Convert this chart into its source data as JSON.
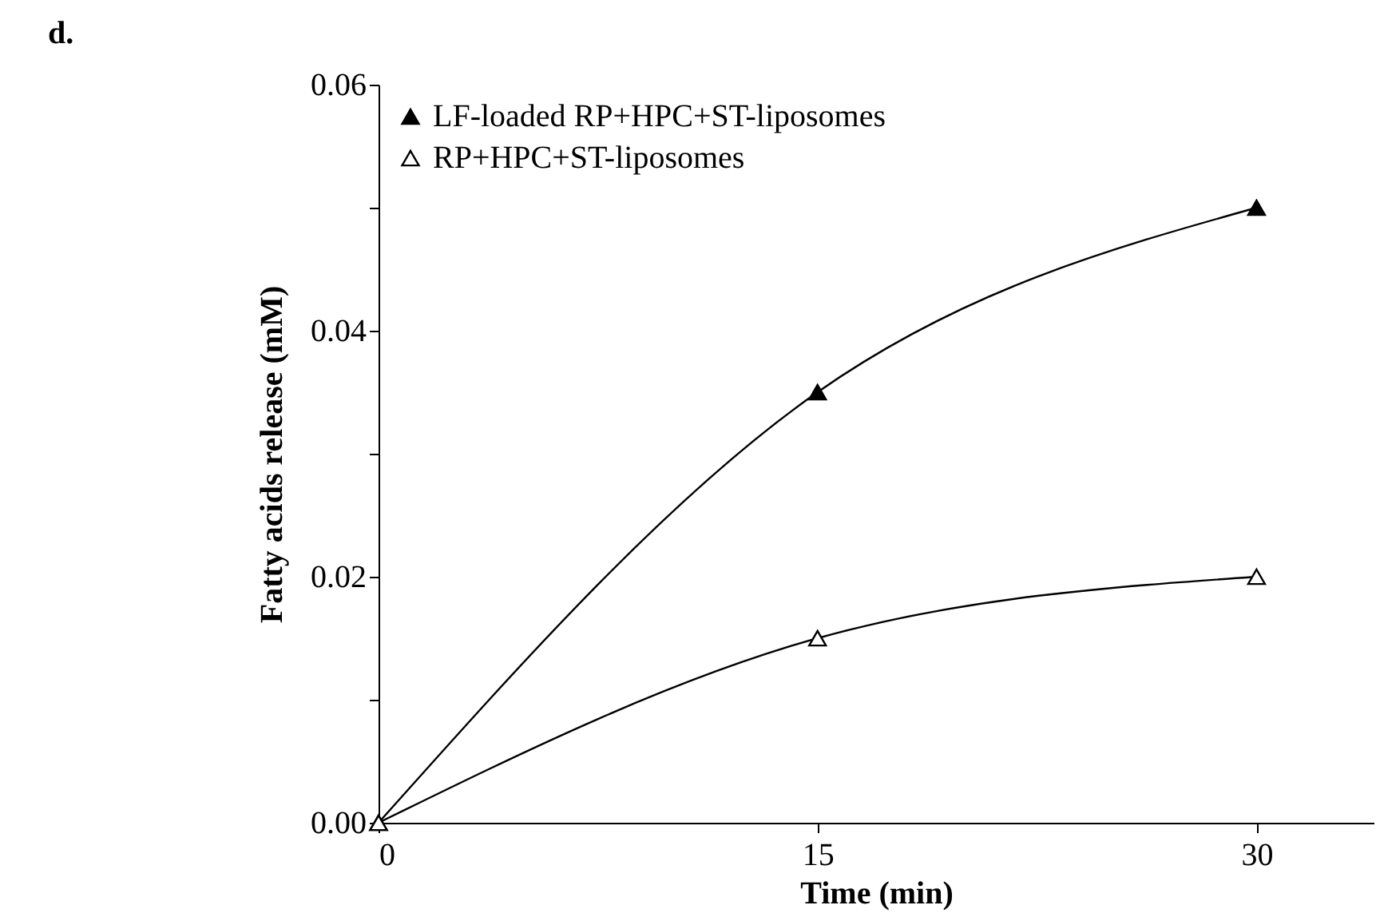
{
  "chart_data": {
    "type": "line",
    "xlabel": "Time (min)",
    "ylabel": "Fatty acids release (mM)",
    "annotations": [
      "d."
    ],
    "x": [
      0,
      15,
      30
    ],
    "xlim": [
      0,
      34
    ],
    "xticks": [
      0,
      15,
      30
    ],
    "ylim": [
      0,
      0.06
    ],
    "yticks": [
      {
        "value": 0,
        "label": "0.00"
      },
      {
        "value": 0.01,
        "label": null
      },
      {
        "value": 0.02,
        "label": "0.02"
      },
      {
        "value": 0.03,
        "label": null
      },
      {
        "value": 0.04,
        "label": "0.04"
      },
      {
        "value": 0.05,
        "label": null
      },
      {
        "value": 0.06,
        "label": "0.06"
      }
    ],
    "series": [
      {
        "name": "LF-loaded RP+HPC+ST-liposomes",
        "color": "#000000",
        "values": [
          0,
          0.035,
          0.05
        ]
      },
      {
        "name": "RP+HPC+ST-liposomes",
        "color": "#000000",
        "values": [
          0,
          0.015,
          0.02
        ]
      }
    ],
    "marker": "triangle",
    "line_style": "solid",
    "legend": "top left",
    "grid": false
  }
}
